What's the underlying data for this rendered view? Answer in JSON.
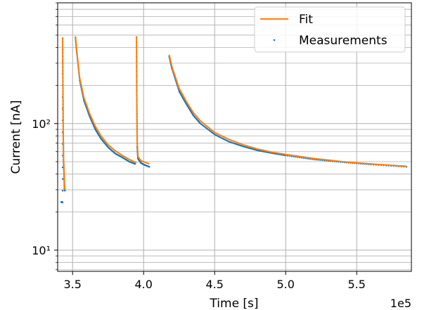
{
  "chart_data": {
    "type": "line",
    "title": "",
    "xlabel": "Time [s]",
    "ylabel": "Current [nA]",
    "x_offset_label": "1e5",
    "x_scale": "linear",
    "y_scale": "log",
    "xlim": [
      3.395,
      5.885
    ],
    "ylim": [
      6.8,
      900
    ],
    "grid": true,
    "grid_minor_y": true,
    "legend_position": "top-right",
    "x_ticks": [
      3.5,
      4.0,
      4.5,
      5.0,
      5.5
    ],
    "x_tick_labels": [
      "3.5",
      "4.0",
      "4.5",
      "5.0",
      "5.5"
    ],
    "y_ticks": [
      10,
      100
    ],
    "y_tick_labels": [
      "10¹",
      "10²"
    ],
    "series": [
      {
        "name": "Fit",
        "style": "line",
        "color": "#ff7f0e",
        "segments": [
          [
            [
              3.43,
              480
            ],
            [
              3.432,
              200
            ],
            [
              3.434,
              90
            ],
            [
              3.436,
              55
            ],
            [
              3.44,
              42
            ],
            [
              3.445,
              30
            ]
          ],
          [
            [
              3.52,
              490
            ],
            [
              3.53,
              370
            ],
            [
              3.55,
              230
            ],
            [
              3.58,
              160
            ],
            [
              3.62,
              120
            ],
            [
              3.66,
              95
            ],
            [
              3.7,
              80
            ],
            [
              3.75,
              68
            ],
            [
              3.8,
              61
            ],
            [
              3.85,
              56
            ],
            [
              3.9,
              52
            ],
            [
              3.95,
              49
            ]
          ],
          [
            [
              3.95,
              490
            ],
            [
              3.952,
              150
            ],
            [
              3.955,
              70
            ],
            [
              3.96,
              55
            ],
            [
              3.98,
              51
            ],
            [
              4.0,
              50
            ],
            [
              4.04,
              48
            ]
          ],
          [
            [
              4.18,
              350
            ],
            [
              4.2,
              280
            ],
            [
              4.25,
              190
            ],
            [
              4.3,
              150
            ],
            [
              4.35,
              122
            ],
            [
              4.4,
              105
            ],
            [
              4.5,
              85
            ],
            [
              4.6,
              75
            ],
            [
              4.7,
              68
            ],
            [
              4.8,
              63
            ],
            [
              4.9,
              59.5
            ],
            [
              5.0,
              57
            ],
            [
              5.2,
              53
            ],
            [
              5.4,
              50
            ],
            [
              5.6,
              48
            ],
            [
              5.85,
              46
            ]
          ]
        ]
      },
      {
        "name": "Measurements",
        "style": "scatter",
        "color": "#1f77b4",
        "segments": [
          [
            [
              3.42,
              24
            ],
            [
              3.425,
              24
            ],
            [
              3.43,
              23.8
            ],
            [
              3.43,
              470
            ],
            [
              3.432,
              190
            ],
            [
              3.434,
              85
            ],
            [
              3.436,
              52
            ],
            [
              3.44,
              40
            ],
            [
              3.443,
              31
            ],
            [
              3.445,
              29.5
            ]
          ],
          [
            [
              3.52,
              480
            ],
            [
              3.53,
              360
            ],
            [
              3.55,
              220
            ],
            [
              3.58,
              152
            ],
            [
              3.62,
              114
            ],
            [
              3.66,
              90
            ],
            [
              3.7,
              76
            ],
            [
              3.75,
              65
            ],
            [
              3.8,
              58
            ],
            [
              3.85,
              54
            ],
            [
              3.9,
              50
            ],
            [
              3.94,
              48
            ]
          ],
          [
            [
              3.95,
              480
            ],
            [
              3.952,
              140
            ],
            [
              3.955,
              66
            ],
            [
              3.96,
              53
            ],
            [
              3.98,
              49
            ],
            [
              4.0,
              47.5
            ],
            [
              4.04,
              45.5
            ]
          ],
          [
            [
              4.18,
              340
            ],
            [
              4.2,
              270
            ],
            [
              4.25,
              180
            ],
            [
              4.3,
              143
            ],
            [
              4.35,
              116
            ],
            [
              4.4,
              100
            ],
            [
              4.5,
              82
            ],
            [
              4.6,
              72
            ],
            [
              4.7,
              66
            ],
            [
              4.8,
              61.5
            ],
            [
              4.9,
              58.5
            ],
            [
              5.0,
              56
            ],
            [
              5.2,
              52
            ],
            [
              5.4,
              49.5
            ],
            [
              5.6,
              47.5
            ],
            [
              5.85,
              45.5
            ]
          ]
        ]
      }
    ]
  }
}
